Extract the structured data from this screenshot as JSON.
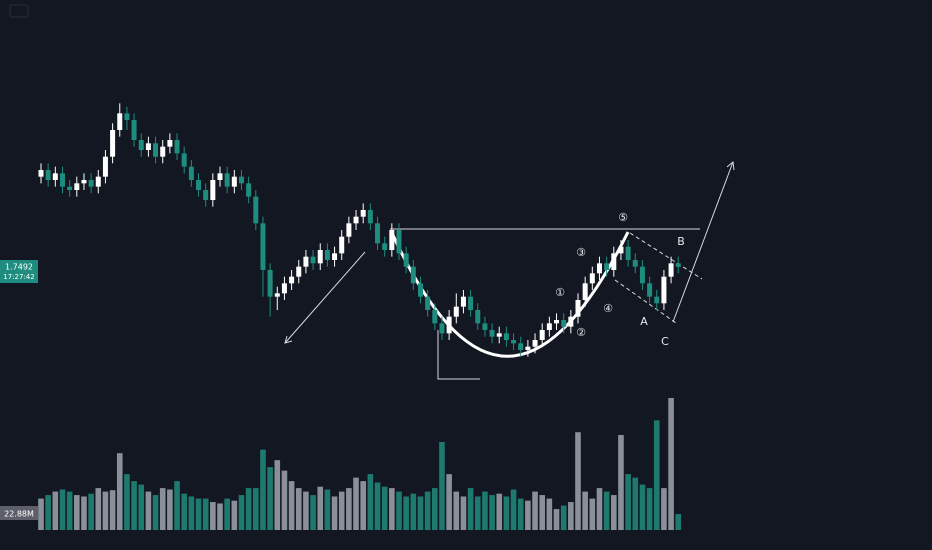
{
  "chart_data": {
    "type": "candlestick",
    "ylim": [
      1.35,
      2.55
    ],
    "up_color": "#ffffff",
    "down_color": "#1e8c7e",
    "volume_up_color": "#8a8f99",
    "volume_down_color": "#1e7a6e",
    "open": [
      2.02,
      2.04,
      2.01,
      2.03,
      1.99,
      1.98,
      2.0,
      2.01,
      1.99,
      2.02,
      2.08,
      2.16,
      2.21,
      2.19,
      2.13,
      2.1,
      2.12,
      2.08,
      2.11,
      2.13,
      2.09,
      2.05,
      2.01,
      1.98,
      1.95,
      2.01,
      2.03,
      1.99,
      2.02,
      2.0,
      1.96,
      1.88,
      1.74,
      1.66,
      1.67,
      1.7,
      1.72,
      1.75,
      1.78,
      1.76,
      1.8,
      1.77,
      1.79,
      1.84,
      1.88,
      1.9,
      1.92,
      1.88,
      1.82,
      1.8,
      1.86,
      1.79,
      1.75,
      1.7,
      1.66,
      1.62,
      1.58,
      1.55,
      1.6,
      1.63,
      1.66,
      1.62,
      1.58,
      1.56,
      1.54,
      1.55,
      1.53,
      1.52,
      1.5,
      1.51,
      1.53,
      1.56,
      1.58,
      1.59,
      1.57,
      1.6,
      1.65,
      1.7,
      1.73,
      1.76,
      1.74,
      1.79,
      1.81,
      1.77,
      1.75,
      1.7,
      1.66,
      1.64,
      1.72,
      1.76
    ],
    "high": [
      2.06,
      2.06,
      2.05,
      2.05,
      2.01,
      2.02,
      2.03,
      2.03,
      2.04,
      2.1,
      2.18,
      2.24,
      2.23,
      2.21,
      2.15,
      2.14,
      2.14,
      2.13,
      2.15,
      2.15,
      2.11,
      2.07,
      2.03,
      2.0,
      2.03,
      2.05,
      2.05,
      2.04,
      2.04,
      2.02,
      1.98,
      1.9,
      1.76,
      1.69,
      1.72,
      1.74,
      1.77,
      1.8,
      1.8,
      1.82,
      1.82,
      1.81,
      1.86,
      1.9,
      1.92,
      1.94,
      1.94,
      1.9,
      1.84,
      1.88,
      1.88,
      1.81,
      1.77,
      1.72,
      1.68,
      1.64,
      1.6,
      1.62,
      1.67,
      1.68,
      1.68,
      1.64,
      1.6,
      1.58,
      1.57,
      1.57,
      1.55,
      1.54,
      1.53,
      1.55,
      1.58,
      1.6,
      1.61,
      1.61,
      1.62,
      1.67,
      1.72,
      1.75,
      1.78,
      1.78,
      1.81,
      1.83,
      1.83,
      1.79,
      1.77,
      1.72,
      1.68,
      1.74,
      1.78,
      1.78
    ],
    "low": [
      2.0,
      1.99,
      1.99,
      1.97,
      1.96,
      1.96,
      1.98,
      1.97,
      1.97,
      2.0,
      2.06,
      2.14,
      2.16,
      2.11,
      2.08,
      2.08,
      2.06,
      2.06,
      2.09,
      2.07,
      2.03,
      1.99,
      1.96,
      1.93,
      1.93,
      1.99,
      1.97,
      1.97,
      1.98,
      1.94,
      1.86,
      1.66,
      1.6,
      1.62,
      1.65,
      1.68,
      1.7,
      1.73,
      1.74,
      1.74,
      1.75,
      1.75,
      1.77,
      1.82,
      1.86,
      1.88,
      1.86,
      1.8,
      1.78,
      1.78,
      1.77,
      1.73,
      1.68,
      1.64,
      1.6,
      1.56,
      1.53,
      1.53,
      1.58,
      1.61,
      1.6,
      1.56,
      1.54,
      1.52,
      1.52,
      1.51,
      1.5,
      1.48,
      1.48,
      1.49,
      1.51,
      1.54,
      1.56,
      1.55,
      1.55,
      1.58,
      1.63,
      1.68,
      1.71,
      1.72,
      1.72,
      1.77,
      1.75,
      1.73,
      1.68,
      1.64,
      1.62,
      1.62,
      1.7,
      1.73
    ],
    "close": [
      2.04,
      2.01,
      2.03,
      1.99,
      1.98,
      2.0,
      2.01,
      1.99,
      2.02,
      2.08,
      2.16,
      2.21,
      2.19,
      2.13,
      2.1,
      2.12,
      2.08,
      2.11,
      2.13,
      2.09,
      2.05,
      2.01,
      1.98,
      1.95,
      2.01,
      2.03,
      1.99,
      2.02,
      2.0,
      1.96,
      1.88,
      1.74,
      1.66,
      1.67,
      1.7,
      1.72,
      1.75,
      1.78,
      1.76,
      1.8,
      1.77,
      1.79,
      1.84,
      1.88,
      1.9,
      1.92,
      1.88,
      1.82,
      1.8,
      1.86,
      1.79,
      1.75,
      1.7,
      1.66,
      1.62,
      1.58,
      1.55,
      1.6,
      1.63,
      1.66,
      1.62,
      1.58,
      1.56,
      1.54,
      1.55,
      1.53,
      1.52,
      1.5,
      1.51,
      1.53,
      1.56,
      1.58,
      1.59,
      1.57,
      1.6,
      1.65,
      1.7,
      1.73,
      1.76,
      1.74,
      1.79,
      1.81,
      1.77,
      1.75,
      1.7,
      1.66,
      1.64,
      1.72,
      1.76,
      1.7492
    ],
    "volume": [
      45,
      50,
      55,
      58,
      55,
      50,
      48,
      52,
      60,
      55,
      57,
      110,
      80,
      70,
      65,
      55,
      50,
      60,
      58,
      70,
      52,
      48,
      45,
      45,
      40,
      38,
      45,
      42,
      50,
      60,
      60,
      115,
      90,
      100,
      85,
      70,
      60,
      55,
      50,
      62,
      58,
      48,
      55,
      60,
      75,
      70,
      80,
      68,
      62,
      60,
      55,
      48,
      52,
      48,
      55,
      60,
      126,
      80,
      55,
      48,
      60,
      48,
      55,
      50,
      52,
      48,
      58,
      45,
      42,
      55,
      50,
      45,
      30,
      35,
      40,
      140,
      55,
      45,
      60,
      55,
      50,
      136,
      80,
      75,
      65,
      60,
      157,
      60,
      189,
      22.88
    ],
    "volume_label": "22.88M",
    "countdown": "17:27:42",
    "annotations": [
      "①",
      "②",
      "③",
      "④",
      "⑤",
      "A",
      "B",
      "C"
    ]
  }
}
